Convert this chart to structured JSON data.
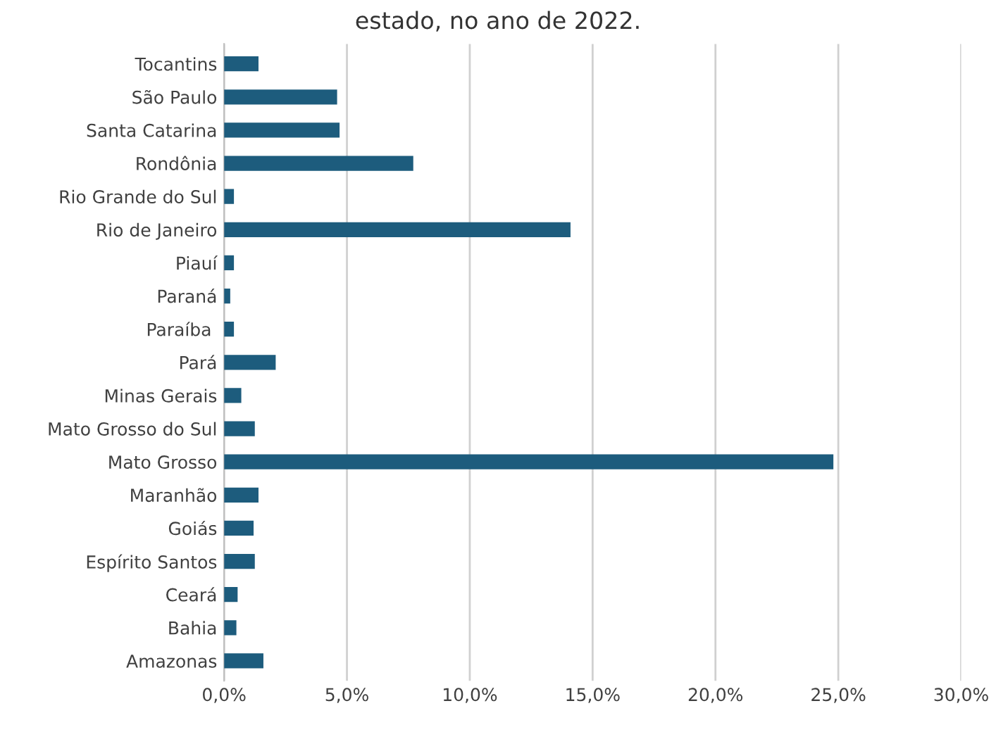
{
  "chart_data": {
    "type": "bar",
    "orientation": "horizontal",
    "title": "estado, no ano de 2022.",
    "categories": [
      "Tocantins",
      "São Paulo",
      "Santa Catarina",
      "Rondônia",
      "Rio Grande do Sul",
      "Rio de Janeiro",
      "Piauí",
      "Paraná",
      "Paraíba ",
      "Pará",
      "Minas Gerais",
      "Mato Grosso do Sul",
      "Mato Grosso",
      "Maranhão",
      "Goiás",
      "Espírito Santos",
      "Ceará",
      "Bahia",
      "Amazonas"
    ],
    "values": [
      1.4,
      4.6,
      4.7,
      7.7,
      0.4,
      14.1,
      0.4,
      0.25,
      0.4,
      2.1,
      0.7,
      1.25,
      24.8,
      1.4,
      1.2,
      1.25,
      0.55,
      0.5,
      1.6
    ],
    "color": "#1d5c7d",
    "xlim": [
      0,
      30
    ],
    "xticks": [
      {
        "value": 0,
        "label": "0,0%"
      },
      {
        "value": 5,
        "label": "5,0%"
      },
      {
        "value": 10,
        "label": "10,0%"
      },
      {
        "value": 15,
        "label": "15,0%"
      },
      {
        "value": 20,
        "label": "20,0%"
      },
      {
        "value": 25,
        "label": "25,0%"
      },
      {
        "value": 30,
        "label": "30,0%"
      }
    ],
    "grid": "x"
  }
}
